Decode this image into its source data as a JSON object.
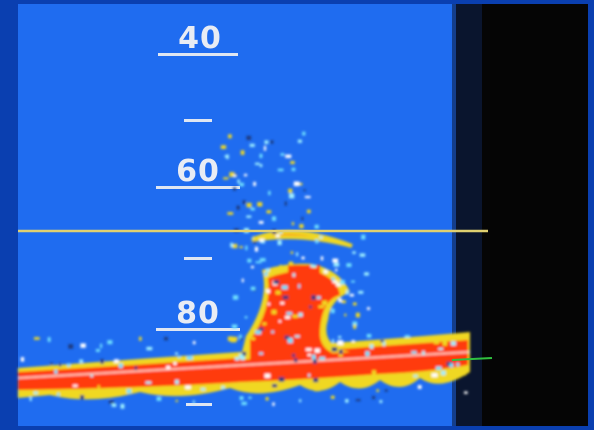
{
  "depth_labels": [
    "40",
    "60",
    "80"
  ]
}
